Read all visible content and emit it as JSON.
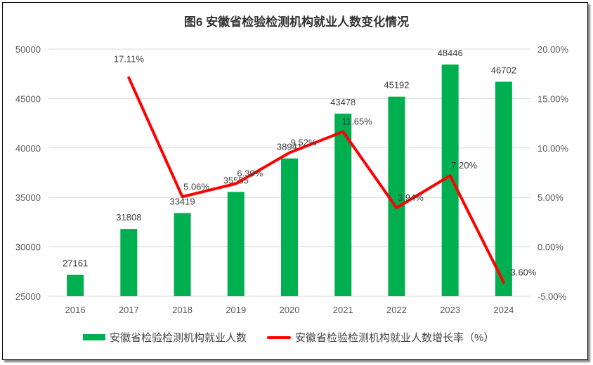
{
  "chart_data": {
    "type": "bar+line",
    "title": "图6  安徽省检验检测机构就业人数变化情况",
    "categories": [
      "2016",
      "2017",
      "2018",
      "2019",
      "2020",
      "2021",
      "2022",
      "2023",
      "2024"
    ],
    "series": [
      {
        "name": "安徽省检验检测机构就业人数",
        "type": "bar",
        "axis": "left",
        "color": "#00b050",
        "values": [
          27161,
          31808,
          33419,
          35555,
          38941,
          43478,
          45192,
          48446,
          46702
        ],
        "labels": [
          "27161",
          "31808",
          "33419",
          "35555",
          "38941",
          "43478",
          "45192",
          "48446",
          "46702"
        ]
      },
      {
        "name": "安徽省检验检测机构就业人数增长率（%）",
        "type": "line",
        "axis": "right",
        "color": "#ff0000",
        "values": [
          null,
          17.11,
          5.06,
          6.39,
          9.52,
          11.65,
          3.94,
          7.2,
          -3.6
        ],
        "labels": [
          "",
          "17.11%",
          "5.06%",
          "6.39%",
          "9.52%",
          "11.65%",
          "3.94%",
          "7.20%",
          "-3.60%"
        ]
      }
    ],
    "y_left": {
      "range": [
        25000,
        50000
      ],
      "ticks": [
        "25000",
        "30000",
        "35000",
        "40000",
        "45000",
        "50000"
      ]
    },
    "y_right": {
      "range": [
        -5,
        20
      ],
      "ticks": [
        "-5.00%",
        "0.00%",
        "5.00%",
        "10.00%",
        "15.00%",
        "20.00%"
      ]
    },
    "grid": true,
    "legend_position": "bottom"
  }
}
